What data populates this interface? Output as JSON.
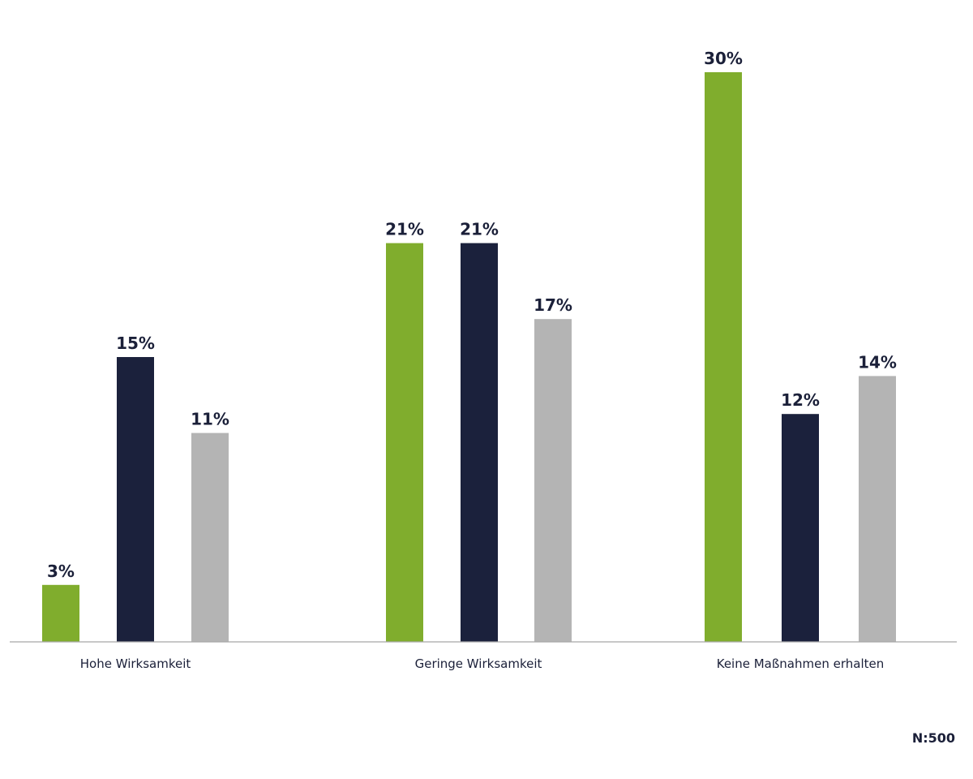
{
  "chart_data": {
    "type": "bar",
    "categories": [
      "Hohe Wirksamkeit",
      "Geringe Wirksamkeit",
      "Keine Maßnahmen erhalten"
    ],
    "series": [
      {
        "values": [
          3,
          21,
          30
        ],
        "labels": [
          "3%",
          "21%",
          "30%"
        ],
        "color": "#80ad2d"
      },
      {
        "values": [
          15,
          21,
          12
        ],
        "labels": [
          "15%",
          "21%",
          "12%"
        ],
        "color": "#1b213c"
      },
      {
        "values": [
          11,
          17,
          14
        ],
        "labels": [
          "11%",
          "17%",
          "14%"
        ],
        "color": "#b4b4b4"
      }
    ],
    "ylim": [
      0,
      30
    ],
    "grid": false,
    "note": "N:500"
  }
}
